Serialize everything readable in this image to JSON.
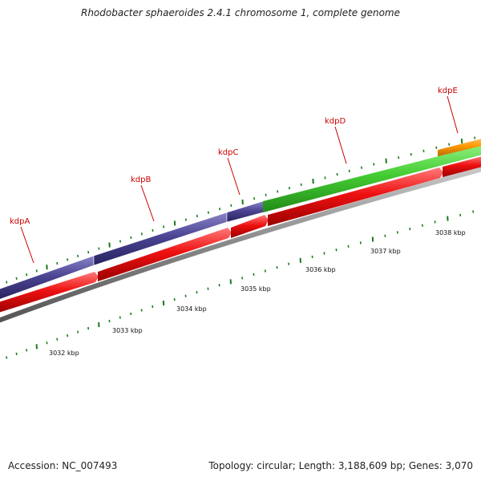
{
  "title": "Rhodobacter sphaeroides 2.4.1 chromosome 1, complete genome",
  "footer": {
    "accession_label": "Accession:",
    "accession_value": "NC_007493",
    "topology_label": "Topology:",
    "topology_value": "circular",
    "length_label": "Length:",
    "length_value": "3,188,609 bp",
    "genes_label": "Genes:",
    "genes_value": "3,070"
  },
  "colors": {
    "gene_label": "#cc0000",
    "kdpA_arrow": "#4b4593",
    "kdpB_arrow": "#4b4593",
    "kdpC_arrow": "#4b4593",
    "kdpD_arrow": "#44cc33",
    "kdpE_arrow": "#ff9900",
    "tick": "#1a7a1a",
    "cds_arrow": "#ee1111",
    "backbone": "#888888"
  },
  "genes": [
    {
      "name": "kdpA"
    },
    {
      "name": "kdpB"
    },
    {
      "name": "kdpC"
    },
    {
      "name": "kdpD"
    },
    {
      "name": "kdpE"
    }
  ],
  "kbp_labels": [
    "3032 kbp",
    "3033 kbp",
    "3034 kbp",
    "3035 kbp",
    "3036 kbp",
    "3037 kbp",
    "3038 kbp"
  ]
}
